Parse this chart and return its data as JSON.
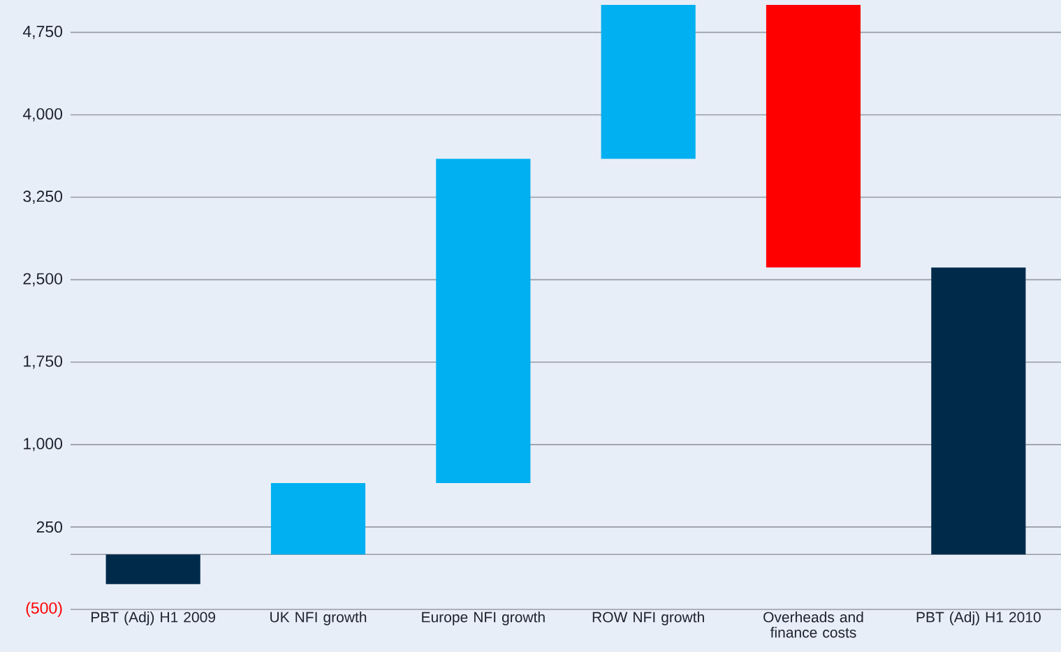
{
  "chart_data": {
    "type": "bar",
    "categories": [
      "PBT (Adj) H1 2009",
      "UK NFI growth",
      "Europe NFI growth",
      "ROW NFI growth",
      "Overheads and finance costs",
      "PBT (Adj) H1 2010"
    ],
    "values": [
      -270,
      650,
      2950,
      1400,
      -2390,
      2610
    ],
    "base": [
      0,
      0,
      650,
      3600,
      5000,
      0
    ],
    "colors": [
      "#002a4a",
      "#00b0f0",
      "#00b0f0",
      "#00b0f0",
      "#ff0000",
      "#002a4a"
    ],
    "ylim": [
      -500,
      5000
    ],
    "yticks": [
      {
        "value": -500,
        "label": "(500)"
      },
      {
        "value": 0,
        "label": null
      },
      {
        "value": 250,
        "label": "250"
      },
      {
        "value": 1000,
        "label": "1,000"
      },
      {
        "value": 1750,
        "label": "1,750"
      },
      {
        "value": 2500,
        "label": "2,500"
      },
      {
        "value": 3250,
        "label": "3,250"
      },
      {
        "value": 4000,
        "label": "4,000"
      },
      {
        "value": 4750,
        "label": "4,750"
      }
    ],
    "grid": "y"
  }
}
